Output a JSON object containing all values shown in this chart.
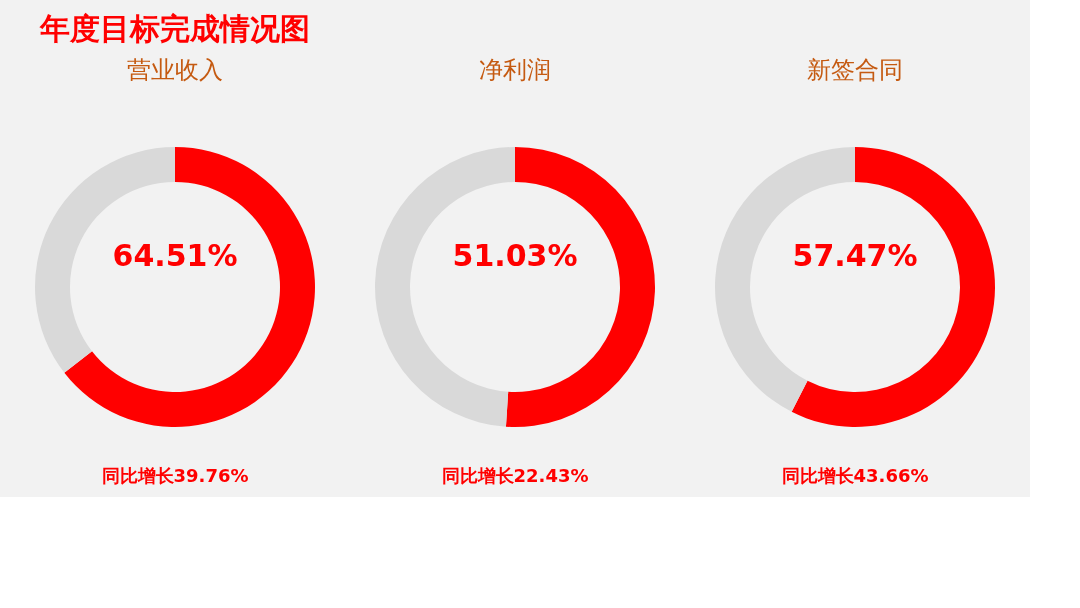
{
  "chart_data": [
    {
      "type": "donut",
      "title": "年度目标完成情况图",
      "subtitle": "营业收入",
      "categories": [
        null,
        null
      ],
      "values": [
        64.51,
        35.49
      ],
      "colors": [
        "#ff0000",
        "#d9d9d9"
      ],
      "value_labels": [
        "64.51%",
        null
      ],
      "annotations": [
        "同比增长39.76%"
      ],
      "legend": false
    },
    {
      "type": "donut",
      "subtitle": "净利润",
      "categories": [
        null,
        null
      ],
      "values": [
        51.03,
        48.97
      ],
      "colors": [
        "#ff0000",
        "#d9d9d9"
      ],
      "value_labels": [
        "51.03%",
        null
      ],
      "annotations": [
        "同比增长22.43%"
      ],
      "legend": false
    },
    {
      "type": "donut",
      "subtitle": "新签合同",
      "categories": [
        null,
        null
      ],
      "values": [
        57.47,
        42.53
      ],
      "colors": [
        "#ff0000",
        "#d9d9d9"
      ],
      "value_labels": [
        "57.47%",
        null
      ],
      "annotations": [
        "同比增长43.66%"
      ],
      "legend": false
    }
  ]
}
